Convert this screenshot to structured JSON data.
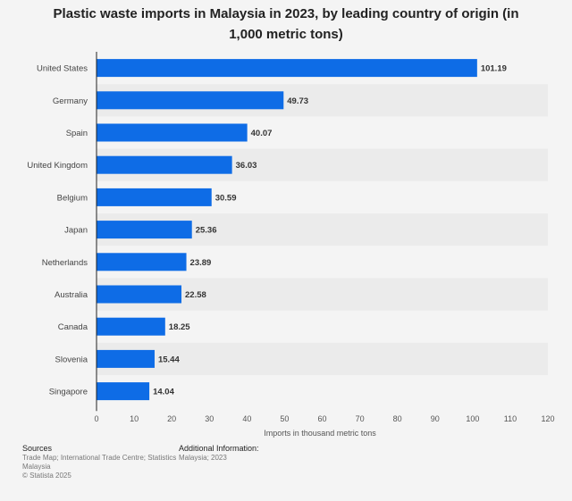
{
  "chart_data": {
    "type": "bar",
    "orientation": "horizontal",
    "title": "Plastic waste imports in Malaysia in 2023, by leading country of origin (in 1,000 metric tons)",
    "xlabel": "Imports in thousand metric tons",
    "ylabel": "",
    "categories": [
      "United States",
      "Germany",
      "Spain",
      "United Kingdom",
      "Belgium",
      "Japan",
      "Netherlands",
      "Australia",
      "Canada",
      "Slovenia",
      "Singapore"
    ],
    "values": [
      101.19,
      49.73,
      40.07,
      36.03,
      30.59,
      25.36,
      23.89,
      22.58,
      18.25,
      15.44,
      14.04
    ],
    "value_labels": [
      "101.19",
      "49.73",
      "40.07",
      "36.03",
      "30.59",
      "25.36",
      "23.89",
      "22.58",
      "18.25",
      "15.44",
      "14.04"
    ],
    "xlim": [
      0,
      120
    ],
    "xticks": [
      0,
      10,
      20,
      30,
      40,
      50,
      60,
      70,
      80,
      90,
      100,
      110,
      120
    ],
    "bar_color": "#0e6ce6",
    "grid": false,
    "legend": "none"
  },
  "footer": {
    "sources_heading": "Sources",
    "sources_text": "Trade Map; International Trade Centre; Statistics Malaysia",
    "copyright": "© Statista 2025",
    "additional_heading": "Additional Information:",
    "additional_text": "Malaysia; 2023"
  }
}
